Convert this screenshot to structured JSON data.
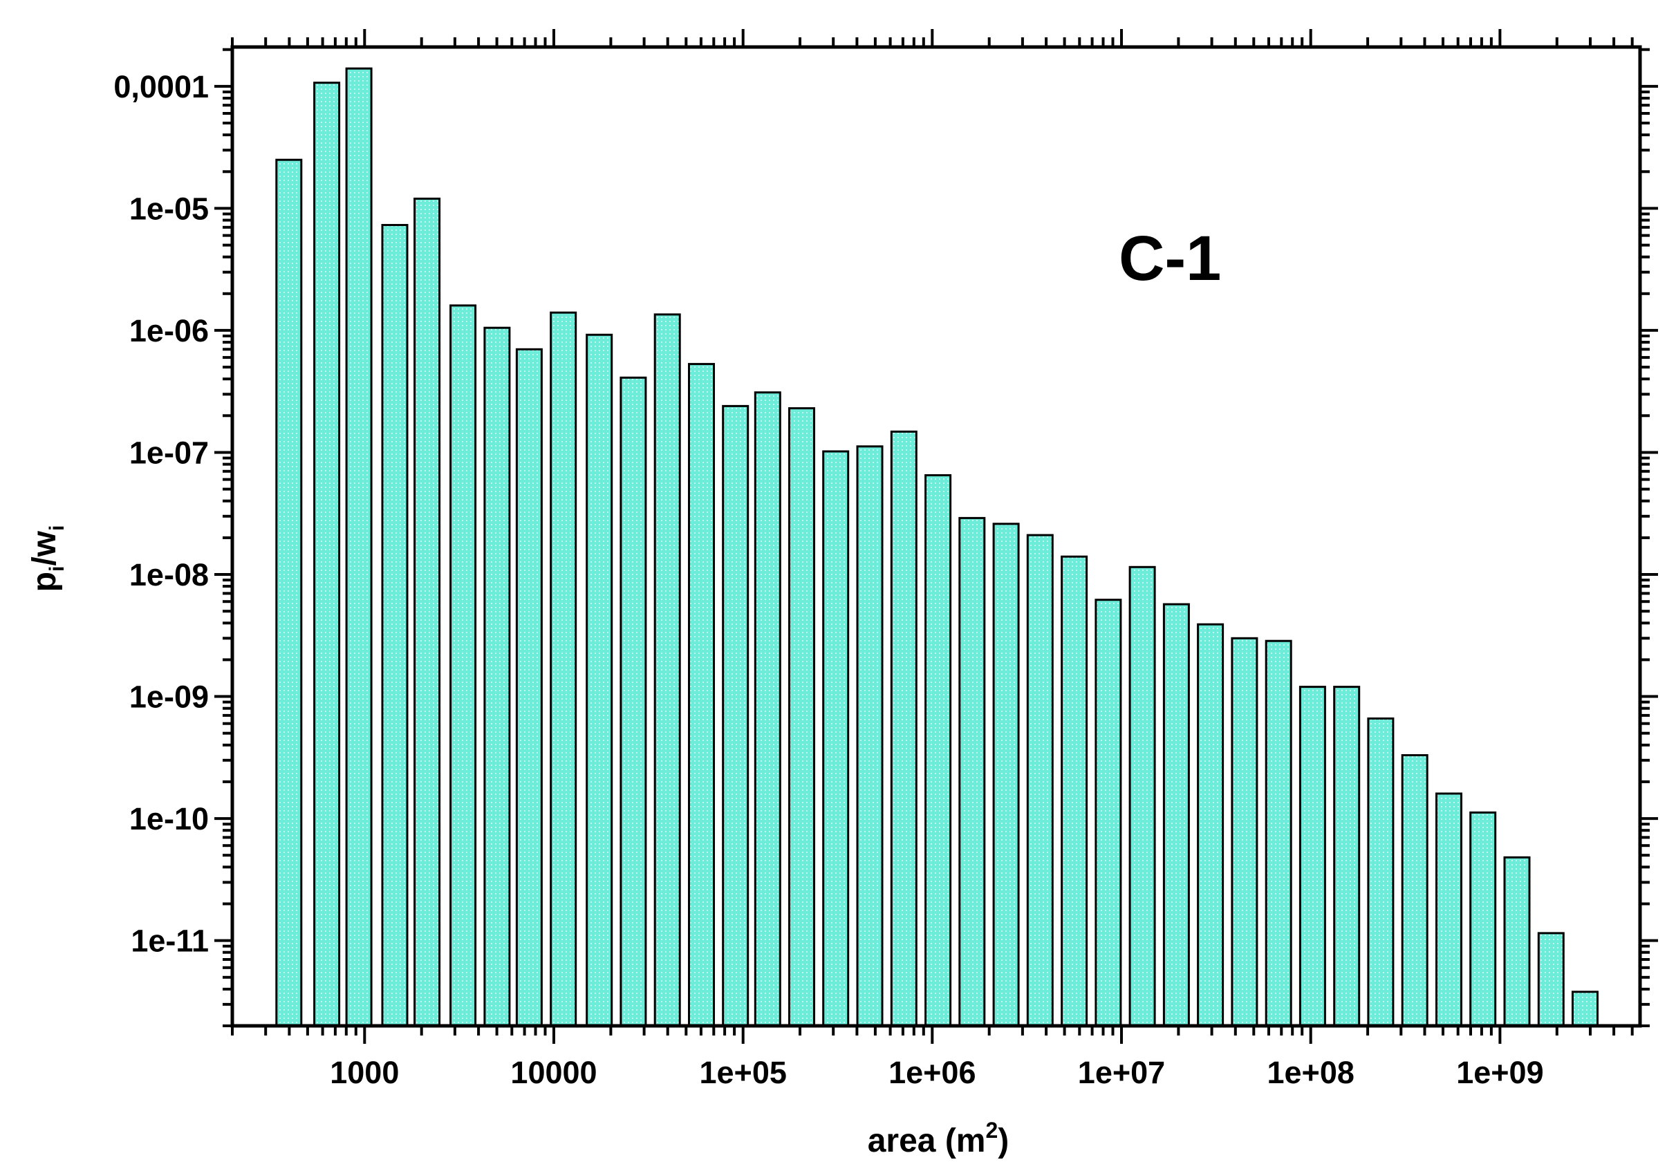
{
  "chart_data": {
    "type": "bar",
    "x_scale": "log",
    "y_scale": "log",
    "xlabel": "area (m²)",
    "xlabel_base": "area (m",
    "xlabel_sup": "2",
    "xlabel_close": ")",
    "ylabel": "pi/wi",
    "ylabel_p": "p",
    "ylabel_sub1": "i",
    "ylabel_slash": "/w",
    "ylabel_sub2": "i",
    "annotation": "C-1",
    "xlim": [
      200,
      5500000000
    ],
    "ylim": [
      2e-12,
      0.00021
    ],
    "x_ticks": [
      {
        "value": 1000,
        "label": "1000"
      },
      {
        "value": 10000,
        "label": "10000"
      },
      {
        "value": 100000,
        "label": "1e+05"
      },
      {
        "value": 1000000,
        "label": "1e+06"
      },
      {
        "value": 10000000,
        "label": "1e+07"
      },
      {
        "value": 100000000,
        "label": "1e+08"
      },
      {
        "value": 1000000000,
        "label": "1e+09"
      }
    ],
    "y_ticks": [
      {
        "value": 0.0001,
        "label": "0,0001"
      },
      {
        "value": 1e-05,
        "label": "1e-05"
      },
      {
        "value": 1e-06,
        "label": "1e-06"
      },
      {
        "value": 1e-07,
        "label": "1e-07"
      },
      {
        "value": 1e-08,
        "label": "1e-08"
      },
      {
        "value": 1e-09,
        "label": "1e-09"
      },
      {
        "value": 1e-10,
        "label": "1e-10"
      },
      {
        "value": 1e-11,
        "label": "1e-11"
      }
    ],
    "bar_color": "#5ee8d6",
    "bars": [
      {
        "x": 398,
        "y": 2.5e-05
      },
      {
        "x": 631,
        "y": 0.000107
      },
      {
        "x": 933,
        "y": 0.00014
      },
      {
        "x": 1445,
        "y": 7.3e-06
      },
      {
        "x": 2138,
        "y": 1.2e-05
      },
      {
        "x": 3311,
        "y": 1.6e-06
      },
      {
        "x": 5012,
        "y": 1.05e-06
      },
      {
        "x": 7413,
        "y": 7e-07
      },
      {
        "x": 11220,
        "y": 1.4e-06
      },
      {
        "x": 17380,
        "y": 9.2e-07
      },
      {
        "x": 26300,
        "y": 4.1e-07
      },
      {
        "x": 39810,
        "y": 1.35e-06
      },
      {
        "x": 60260,
        "y": 5.3e-07
      },
      {
        "x": 91200,
        "y": 2.4e-07
      },
      {
        "x": 135000,
        "y": 3.1e-07
      },
      {
        "x": 204200,
        "y": 2.3e-07
      },
      {
        "x": 309000,
        "y": 1.02e-07
      },
      {
        "x": 467700,
        "y": 1.12e-07
      },
      {
        "x": 707900,
        "y": 1.48e-07
      },
      {
        "x": 1072000,
        "y": 6.5e-08
      },
      {
        "x": 1622000,
        "y": 2.9e-08
      },
      {
        "x": 2455000,
        "y": 2.6e-08
      },
      {
        "x": 3715000,
        "y": 2.1e-08
      },
      {
        "x": 5623000,
        "y": 1.4e-08
      },
      {
        "x": 8511000,
        "y": 6.2e-09
      },
      {
        "x": 12880000,
        "y": 1.15e-08
      },
      {
        "x": 19500000,
        "y": 5.7e-09
      },
      {
        "x": 29510000,
        "y": 3.9e-09
      },
      {
        "x": 44670000,
        "y": 3e-09
      },
      {
        "x": 67610000,
        "y": 2.85e-09
      },
      {
        "x": 102300000,
        "y": 1.2e-09
      },
      {
        "x": 154900000,
        "y": 1.2e-09
      },
      {
        "x": 234400000,
        "y": 6.6e-10
      },
      {
        "x": 354800000,
        "y": 3.3e-10
      },
      {
        "x": 537000000,
        "y": 1.6e-10
      },
      {
        "x": 812800000,
        "y": 1.12e-10
      },
      {
        "x": 1230000000,
        "y": 4.8e-11
      },
      {
        "x": 1862000000,
        "y": 1.15e-11
      },
      {
        "x": 2818000000,
        "y": 3.8e-12
      }
    ]
  }
}
